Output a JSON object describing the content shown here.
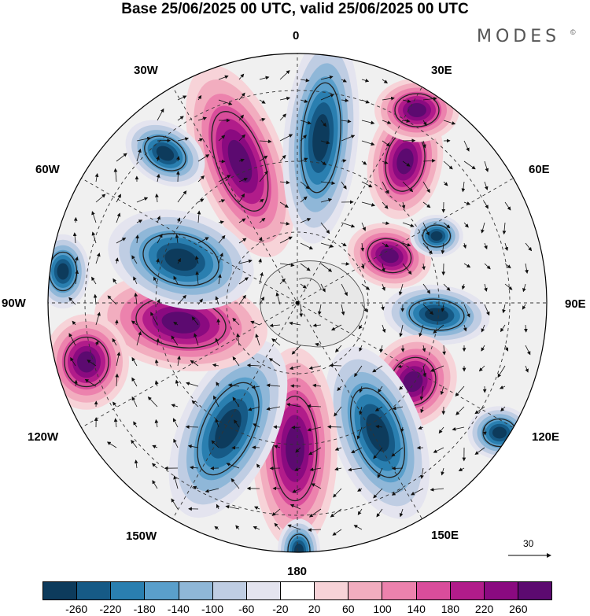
{
  "title": "Base 25/06/2025 00 UTC, valid 25/06/2025 00 UTC",
  "brand": "MODES",
  "brand_mark": "©",
  "longitude_labels": {
    "lon_0": "0",
    "lon_30e": "30E",
    "lon_60e": "60E",
    "lon_90e": "90E",
    "lon_120e": "120E",
    "lon_150e": "150E",
    "lon_180": "180",
    "lon_150w": "150W",
    "lon_120w": "120W",
    "lon_90w": "90W",
    "lon_60w": "60W",
    "lon_30w": "30W"
  },
  "vector_reference": "30",
  "legend": {
    "colors": [
      "#0d3b5c",
      "#165a86",
      "#2a7fb0",
      "#5a9fcb",
      "#8fb7d8",
      "#bfcde3",
      "#e4e4ef",
      "#ffffff",
      "#f7d3d8",
      "#f2adbf",
      "#ec82ad",
      "#d94d9b",
      "#b11c8a",
      "#8a0a80",
      "#5c0a70"
    ],
    "ticks": [
      "-260",
      "-220",
      "-180",
      "-140",
      "-100",
      "-60",
      "-20",
      "20",
      "60",
      "100",
      "140",
      "180",
      "220",
      "260"
    ]
  }
}
